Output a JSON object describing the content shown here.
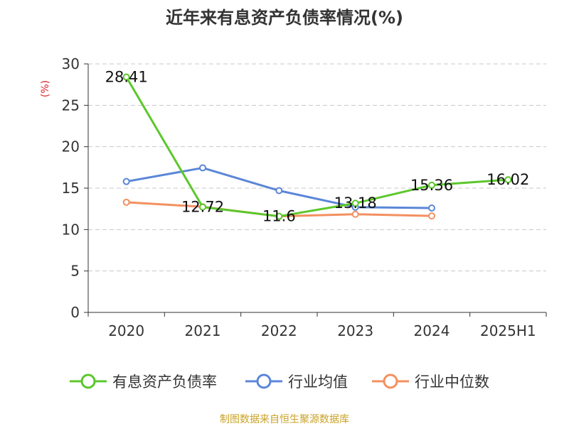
{
  "chart_data": {
    "type": "line",
    "title": "近年来有息资产负债率情况(%)",
    "ylabel": "(%)",
    "xlabel": "",
    "categories": [
      "2020",
      "2021",
      "2022",
      "2023",
      "2024",
      "2025H1"
    ],
    "ylim": [
      0,
      30
    ],
    "yticks": [
      0,
      5,
      10,
      15,
      20,
      25,
      30
    ],
    "grid": true,
    "legend_position": "bottom",
    "series": [
      {
        "name": "有息资产负债率",
        "color": "#5cc72c",
        "values": [
          28.41,
          12.72,
          11.6,
          13.18,
          15.36,
          16.02
        ],
        "labels": [
          "28.41",
          "12.72",
          "11.6",
          "13.18",
          "15.36",
          "16.02"
        ]
      },
      {
        "name": "行业均值",
        "color": "#5b86d8",
        "values": [
          15.8,
          17.45,
          14.7,
          12.7,
          12.6,
          null
        ]
      },
      {
        "name": "行业中位数",
        "color": "#f39060",
        "values": [
          13.3,
          12.75,
          11.6,
          11.85,
          11.65,
          null
        ]
      }
    ]
  },
  "footer": "制图数据来自恒生聚源数据库"
}
